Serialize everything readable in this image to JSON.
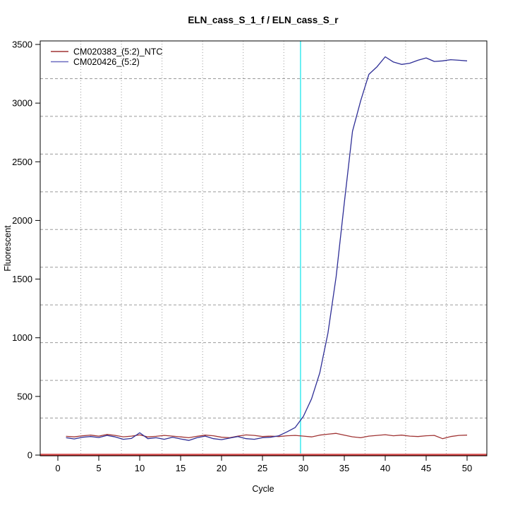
{
  "chart_data": {
    "type": "line",
    "title": "ELN_cass_S_1_f / ELN_cass_S_r",
    "xlabel": "Cycle",
    "ylabel": "Fluorescent",
    "xlim": [
      0,
      50
    ],
    "ylim": [
      0,
      3500
    ],
    "x_ticks": [
      0,
      5,
      10,
      15,
      20,
      25,
      30,
      35,
      40,
      45,
      50
    ],
    "y_ticks": [
      0,
      500,
      1000,
      1500,
      2000,
      2500,
      3000,
      3500
    ],
    "grid": {
      "visible": true,
      "cells_x": 11,
      "cells_y": 11,
      "color": "#9a9a9a",
      "style": "dotted"
    },
    "legend_position": "top-left",
    "x": [
      1,
      2,
      3,
      4,
      5,
      6,
      7,
      8,
      9,
      10,
      11,
      12,
      13,
      14,
      15,
      16,
      17,
      18,
      19,
      20,
      21,
      22,
      23,
      24,
      25,
      26,
      27,
      28,
      29,
      30,
      31,
      32,
      33,
      34,
      35,
      36,
      37,
      38,
      39,
      40,
      41,
      42,
      43,
      44,
      45,
      46,
      47,
      48,
      49,
      50
    ],
    "series": [
      {
        "name": "CM020383_(5:2)_NTC",
        "color": "#a03434",
        "values": [
          160,
          155,
          165,
          170,
          162,
          176,
          168,
          156,
          162,
          172,
          155,
          160,
          168,
          162,
          155,
          148,
          160,
          170,
          165,
          152,
          148,
          162,
          172,
          168,
          158,
          162,
          158,
          165,
          168,
          162,
          155,
          170,
          178,
          185,
          170,
          156,
          148,
          162,
          168,
          174,
          165,
          170,
          162,
          158,
          165,
          168,
          140,
          158,
          168,
          170
        ]
      },
      {
        "name": "CM020426_(5:2)",
        "color": "#2e2e96",
        "values": [
          148,
          138,
          152,
          158,
          150,
          168,
          155,
          135,
          142,
          190,
          140,
          148,
          135,
          152,
          138,
          125,
          148,
          162,
          140,
          132,
          145,
          158,
          140,
          135,
          148,
          152,
          165,
          198,
          235,
          330,
          480,
          700,
          1040,
          1520,
          2150,
          2760,
          3020,
          3245,
          3310,
          3395,
          3350,
          3330,
          3340,
          3365,
          3385,
          3355,
          3360,
          3370,
          3365,
          3360
        ]
      }
    ],
    "annotations": {
      "threshold_line": {
        "orientation": "horizontal",
        "value": 0,
        "color": "#cc3030"
      },
      "ct_line": {
        "orientation": "vertical",
        "cycle": 29.65,
        "color": "#2ee8ee"
      }
    }
  }
}
